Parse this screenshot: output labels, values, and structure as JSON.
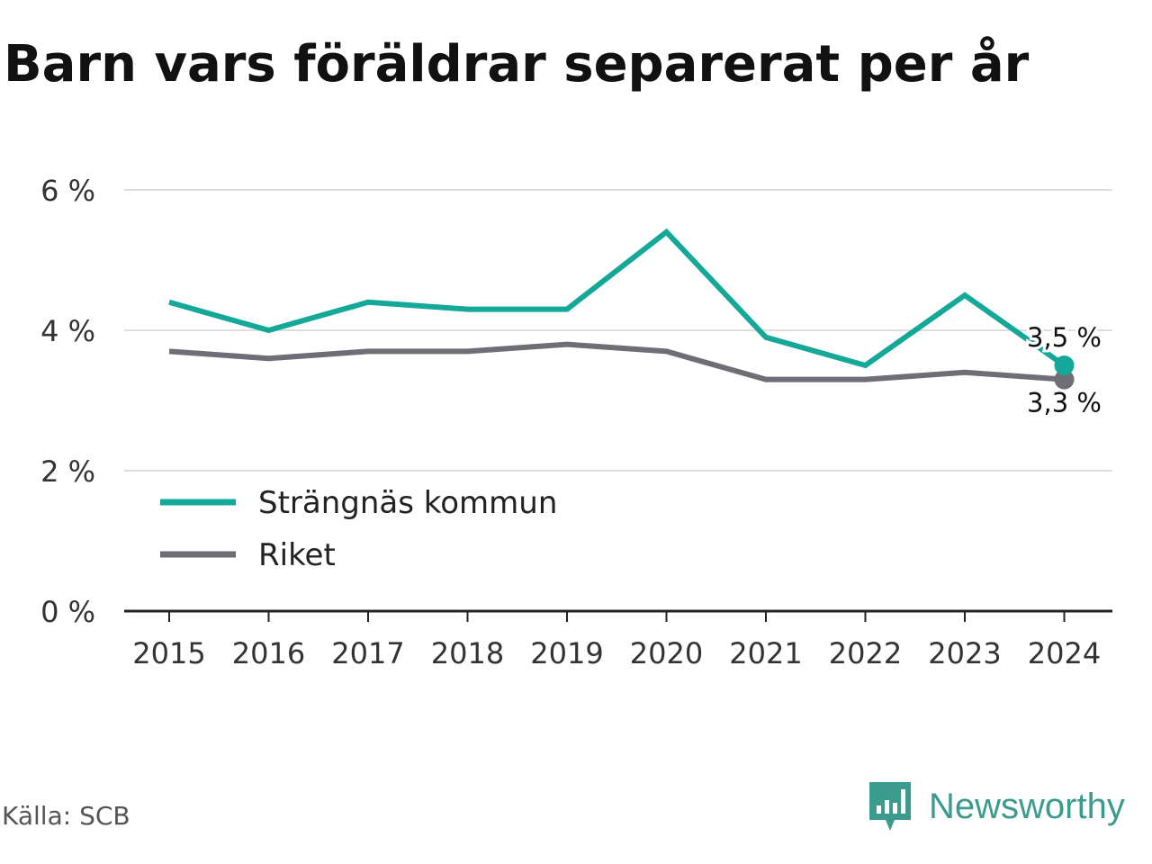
{
  "title": "Barn vars föräldrar separerat per år",
  "source": "Källa: SCB",
  "brand": {
    "name": "Newsworthy",
    "icon": "newsworthy-logo-icon",
    "color": "#3b9c8d"
  },
  "chart_data": {
    "type": "line",
    "x": [
      "2015",
      "2016",
      "2017",
      "2018",
      "2019",
      "2020",
      "2021",
      "2022",
      "2023",
      "2024"
    ],
    "series": [
      {
        "name": "Strängnäs kommun",
        "color": "#14a899",
        "values": [
          4.4,
          4.0,
          4.4,
          4.3,
          4.3,
          5.4,
          3.9,
          3.5,
          4.5,
          3.5
        ],
        "end_label": "3,5 %"
      },
      {
        "name": "Riket",
        "color": "#6e6e76",
        "values": [
          3.7,
          3.6,
          3.7,
          3.7,
          3.8,
          3.7,
          3.3,
          3.3,
          3.4,
          3.3
        ],
        "end_label": "3,3 %"
      }
    ],
    "yticks": [
      0,
      2,
      4,
      6
    ],
    "ytick_labels": [
      "0 %",
      "2 %",
      "4 %",
      "6 %"
    ],
    "ylim": [
      0,
      6
    ],
    "grid": true,
    "legend": "bottom-left"
  }
}
